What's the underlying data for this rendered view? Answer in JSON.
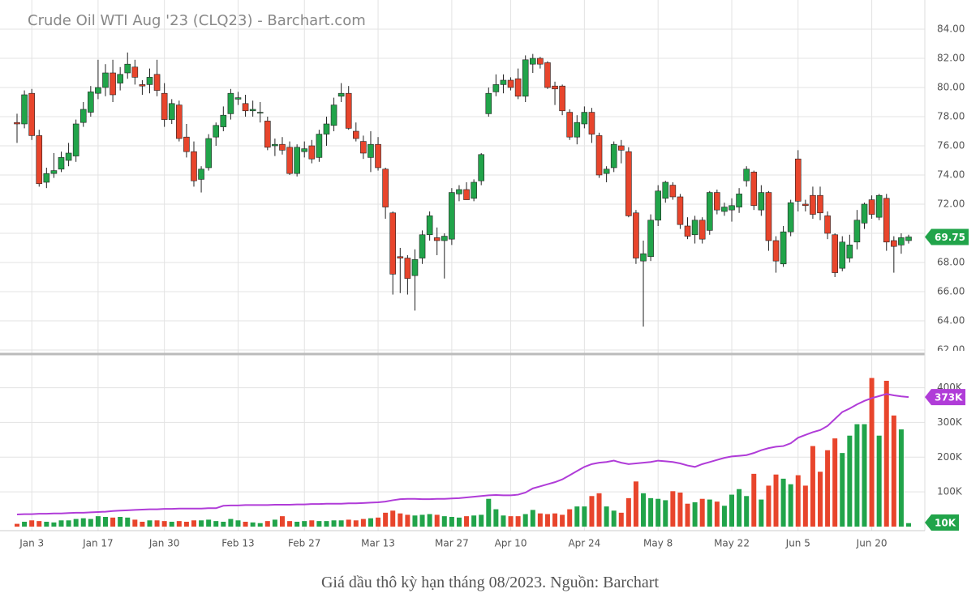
{
  "chart_data": {
    "type": "candlestick",
    "title": "Crude Oil WTI Aug '23 (CLQ23) - Barchart.com",
    "categories": [
      null,
      null,
      "Jan 3",
      null,
      null,
      null,
      null,
      null,
      null,
      null,
      null,
      "Jan 17",
      null,
      null,
      null,
      null,
      null,
      null,
      null,
      null,
      "Jan 30",
      null,
      null,
      null,
      null,
      null,
      null,
      null,
      null,
      null,
      "Feb 13",
      null,
      null,
      null,
      null,
      null,
      null,
      null,
      null,
      "Feb 27",
      null,
      null,
      null,
      null,
      null,
      null,
      null,
      null,
      null,
      "Mar 13",
      null,
      null,
      null,
      null,
      null,
      null,
      null,
      null,
      null,
      "Mar 27",
      null,
      null,
      null,
      null,
      null,
      null,
      null,
      "Apr 10",
      null,
      null,
      null,
      null,
      null,
      null,
      null,
      null,
      null,
      "Apr 24",
      null,
      null,
      null,
      null,
      null,
      null,
      null,
      null,
      null,
      "May 8",
      null,
      null,
      null,
      null,
      null,
      null,
      null,
      null,
      null,
      "May 22",
      null,
      null,
      null,
      null,
      null,
      null,
      null,
      null,
      "Jun 5",
      null,
      null,
      null,
      null,
      null,
      null,
      null,
      null,
      null,
      "Jun 20",
      null,
      null,
      null,
      null,
      null
    ],
    "ohlc": [
      [
        77.6,
        78.2,
        76.2,
        77.5
      ],
      [
        77.5,
        79.8,
        77.2,
        79.5
      ],
      [
        79.6,
        79.9,
        76.4,
        76.7
      ],
      [
        76.7,
        77.1,
        73.2,
        73.4
      ],
      [
        73.5,
        74.5,
        73.1,
        74.1
      ],
      [
        74.1,
        75.5,
        73.8,
        74.3
      ],
      [
        74.4,
        75.6,
        74.2,
        75.2
      ],
      [
        75.0,
        76.2,
        74.6,
        75.5
      ],
      [
        75.3,
        77.8,
        74.9,
        77.5
      ],
      [
        77.6,
        79.0,
        77.3,
        78.5
      ],
      [
        78.3,
        80.1,
        78.0,
        79.7
      ],
      [
        79.6,
        81.9,
        79.2,
        80.0
      ],
      [
        80.0,
        81.6,
        79.4,
        81.0
      ],
      [
        81.0,
        81.9,
        79.0,
        79.5
      ],
      [
        80.3,
        81.4,
        79.8,
        80.9
      ],
      [
        81.0,
        82.4,
        80.6,
        81.6
      ],
      [
        81.4,
        81.9,
        80.2,
        80.7
      ],
      [
        80.2,
        80.5,
        79.5,
        80.1
      ],
      [
        80.2,
        81.3,
        79.6,
        80.7
      ],
      [
        80.9,
        81.9,
        79.4,
        79.8
      ],
      [
        79.6,
        80.3,
        77.3,
        77.8
      ],
      [
        77.8,
        79.2,
        77.5,
        78.9
      ],
      [
        78.8,
        79.1,
        76.3,
        76.5
      ],
      [
        76.6,
        77.5,
        75.2,
        75.6
      ],
      [
        75.6,
        76.3,
        73.2,
        73.6
      ],
      [
        73.7,
        74.6,
        72.8,
        74.4
      ],
      [
        74.5,
        76.8,
        74.3,
        76.5
      ],
      [
        76.6,
        77.6,
        76.0,
        77.4
      ],
      [
        77.3,
        78.7,
        77.0,
        78.1
      ],
      [
        78.2,
        79.9,
        77.8,
        79.6
      ],
      [
        79.2,
        79.7,
        78.8,
        79.3
      ],
      [
        78.9,
        79.5,
        78.0,
        78.4
      ],
      [
        78.4,
        79.1,
        78.0,
        78.5
      ],
      [
        78.3,
        79.0,
        77.6,
        78.3
      ],
      [
        77.7,
        78.0,
        75.7,
        75.9
      ],
      [
        76.0,
        76.5,
        75.3,
        76.1
      ],
      [
        76.1,
        76.6,
        75.4,
        75.7
      ],
      [
        75.9,
        76.3,
        74.0,
        74.1
      ],
      [
        74.1,
        76.1,
        73.9,
        75.9
      ],
      [
        75.6,
        76.3,
        75.2,
        75.8
      ],
      [
        76.0,
        76.4,
        74.8,
        75.1
      ],
      [
        75.2,
        77.1,
        74.9,
        76.8
      ],
      [
        76.8,
        78.0,
        76.0,
        77.5
      ],
      [
        77.4,
        79.3,
        77.0,
        78.8
      ],
      [
        79.4,
        80.3,
        79.0,
        79.6
      ],
      [
        79.6,
        80.1,
        77.1,
        77.2
      ],
      [
        77.0,
        77.6,
        76.3,
        76.5
      ],
      [
        76.3,
        76.7,
        75.1,
        75.5
      ],
      [
        75.2,
        77.0,
        74.2,
        76.1
      ],
      [
        76.1,
        76.6,
        74.3,
        74.5
      ],
      [
        74.4,
        74.5,
        71.0,
        71.8
      ],
      [
        71.4,
        71.5,
        65.8,
        67.2
      ],
      [
        68.4,
        69.0,
        65.9,
        68.3
      ],
      [
        68.3,
        68.5,
        65.8,
        66.9
      ],
      [
        67.1,
        68.9,
        64.7,
        68.2
      ],
      [
        68.3,
        70.2,
        67.9,
        69.9
      ],
      [
        69.9,
        71.5,
        69.5,
        71.2
      ],
      [
        69.7,
        70.4,
        68.5,
        69.5
      ],
      [
        69.5,
        70.0,
        66.9,
        69.8
      ],
      [
        69.6,
        73.1,
        69.2,
        72.8
      ],
      [
        72.7,
        73.3,
        72.2,
        73.0
      ],
      [
        73.0,
        73.5,
        72.3,
        72.3
      ],
      [
        72.4,
        73.7,
        72.2,
        73.5
      ],
      [
        73.6,
        75.5,
        73.3,
        75.4
      ],
      [
        78.2,
        80.0,
        78.0,
        79.6
      ],
      [
        79.7,
        80.9,
        79.4,
        80.2
      ],
      [
        80.2,
        80.9,
        79.6,
        80.5
      ],
      [
        80.5,
        80.7,
        79.8,
        80.0
      ],
      [
        80.6,
        81.3,
        79.2,
        79.4
      ],
      [
        79.4,
        82.2,
        79.0,
        81.9
      ],
      [
        81.6,
        82.3,
        81.0,
        82.0
      ],
      [
        82.0,
        82.1,
        81.3,
        81.6
      ],
      [
        81.7,
        81.8,
        79.9,
        80.0
      ],
      [
        80.1,
        80.4,
        78.8,
        79.9
      ],
      [
        80.1,
        80.2,
        78.1,
        78.4
      ],
      [
        78.3,
        78.5,
        76.4,
        76.6
      ],
      [
        76.6,
        78.1,
        76.1,
        77.6
      ],
      [
        77.5,
        78.7,
        77.2,
        78.3
      ],
      [
        78.3,
        78.6,
        76.2,
        76.8
      ],
      [
        76.7,
        76.9,
        73.8,
        74.0
      ],
      [
        74.1,
        74.6,
        73.5,
        74.4
      ],
      [
        74.5,
        76.3,
        74.2,
        76.1
      ],
      [
        76.0,
        76.4,
        74.8,
        75.7
      ],
      [
        75.6,
        75.9,
        71.1,
        71.2
      ],
      [
        71.4,
        71.6,
        67.9,
        68.3
      ],
      [
        68.1,
        69.5,
        63.6,
        68.6
      ],
      [
        68.4,
        71.3,
        68.1,
        70.9
      ],
      [
        70.9,
        73.3,
        70.5,
        72.9
      ],
      [
        72.4,
        73.6,
        72.1,
        73.5
      ],
      [
        73.3,
        73.5,
        72.3,
        72.5
      ],
      [
        72.5,
        72.7,
        70.3,
        70.6
      ],
      [
        70.5,
        71.1,
        69.6,
        69.8
      ],
      [
        69.9,
        71.2,
        69.3,
        70.9
      ],
      [
        70.9,
        71.1,
        69.3,
        69.6
      ],
      [
        70.2,
        72.9,
        69.9,
        72.8
      ],
      [
        72.8,
        73.0,
        71.3,
        71.6
      ],
      [
        71.5,
        72.1,
        71.2,
        71.8
      ],
      [
        71.6,
        72.4,
        70.8,
        71.9
      ],
      [
        71.8,
        73.1,
        71.4,
        72.7
      ],
      [
        73.6,
        74.6,
        73.2,
        74.4
      ],
      [
        74.2,
        74.3,
        71.6,
        71.9
      ],
      [
        71.6,
        73.3,
        71.2,
        72.8
      ],
      [
        72.8,
        72.9,
        68.8,
        69.5
      ],
      [
        69.5,
        69.8,
        67.3,
        68.1
      ],
      [
        67.9,
        70.5,
        67.7,
        70.1
      ],
      [
        70.1,
        72.3,
        69.8,
        72.1
      ],
      [
        75.1,
        75.7,
        71.5,
        72.2
      ],
      [
        72.0,
        72.3,
        71.5,
        71.9
      ],
      [
        72.6,
        73.2,
        71.0,
        71.3
      ],
      [
        72.6,
        73.2,
        70.9,
        71.4
      ],
      [
        71.2,
        71.5,
        69.6,
        70.0
      ],
      [
        69.9,
        70.0,
        67.0,
        67.3
      ],
      [
        67.6,
        69.8,
        67.4,
        69.4
      ],
      [
        68.3,
        69.9,
        68.0,
        69.2
      ],
      [
        69.4,
        71.6,
        68.9,
        70.9
      ],
      [
        70.7,
        72.1,
        70.3,
        72.0
      ],
      [
        72.3,
        72.6,
        71.0,
        71.3
      ],
      [
        71.1,
        72.7,
        70.9,
        72.6
      ],
      [
        72.4,
        72.7,
        68.8,
        69.4
      ],
      [
        69.5,
        69.8,
        67.3,
        69.1
      ],
      [
        69.2,
        70.0,
        68.6,
        69.7
      ],
      [
        69.5,
        69.9,
        69.3,
        69.75
      ]
    ],
    "up_color": "#21a44a",
    "down_color": "#e8452c",
    "ylim": [
      61.72,
      86
    ],
    "yticks": [
      {
        "value": 62,
        "label": "62.00"
      },
      {
        "value": 64,
        "label": "64.00"
      },
      {
        "value": 66,
        "label": "66.00"
      },
      {
        "value": 68,
        "label": "68.00"
      },
      {
        "value": 70,
        "label": "70.00"
      },
      {
        "value": 72,
        "label": "72.00"
      },
      {
        "value": 74,
        "label": "74.00"
      },
      {
        "value": 76,
        "label": "76.00"
      },
      {
        "value": 78,
        "label": "78.00"
      },
      {
        "value": 80,
        "label": "80.00"
      },
      {
        "value": 82,
        "label": "82.00"
      },
      {
        "value": 84,
        "label": "84.00"
      }
    ],
    "grid": true,
    "volume": {
      "values": [
        8000,
        14000,
        18000,
        16000,
        14000,
        12000,
        18000,
        18000,
        22000,
        24000,
        22000,
        30000,
        28000,
        26000,
        28000,
        26000,
        20000,
        14000,
        18000,
        18000,
        16000,
        14000,
        16000,
        14000,
        18000,
        18000,
        20000,
        16000,
        14000,
        22000,
        18000,
        14000,
        12000,
        10000,
        16000,
        20000,
        30000,
        16000,
        14000,
        16000,
        18000,
        16000,
        16000,
        18000,
        18000,
        20000,
        18000,
        22000,
        24000,
        26000,
        40000,
        46000,
        38000,
        34000,
        32000,
        34000,
        36000,
        34000,
        30000,
        28000,
        26000,
        30000,
        32000,
        34000,
        80000,
        50000,
        32000,
        30000,
        30000,
        36000,
        48000,
        38000,
        36000,
        38000,
        34000,
        50000,
        58000,
        58000,
        88000,
        96000,
        58000,
        46000,
        40000,
        82000,
        130000,
        96000,
        82000,
        80000,
        76000,
        102000,
        98000,
        66000,
        70000,
        80000,
        78000,
        72000,
        60000,
        92000,
        108000,
        88000,
        152000,
        78000,
        118000,
        150000,
        138000,
        122000,
        148000,
        118000,
        232000,
        158000,
        220000,
        254000,
        212000,
        262000,
        295000,
        295000,
        428000,
        262000,
        420000,
        320000,
        280000,
        10000
      ],
      "ylim": [
        0,
        490000
      ],
      "yticks": [
        {
          "value": 100000,
          "label": "100K"
        },
        {
          "value": 200000,
          "label": "200K"
        },
        {
          "value": 300000,
          "label": "300K"
        },
        {
          "value": 400000,
          "label": "400K"
        }
      ],
      "last_tag": {
        "value": 10000,
        "label": "10K"
      }
    },
    "moving_average": {
      "color": "#b03cd8",
      "values": [
        35000,
        36000,
        36000,
        37000,
        37000,
        38000,
        38000,
        39000,
        40000,
        40000,
        41000,
        42000,
        43000,
        45000,
        46000,
        47000,
        48000,
        49000,
        50000,
        50000,
        51000,
        51000,
        52000,
        52000,
        52000,
        52000,
        53000,
        53000,
        60000,
        61000,
        61000,
        62000,
        62000,
        62000,
        62000,
        63000,
        63000,
        63000,
        64000,
        64000,
        65000,
        65000,
        66000,
        66000,
        66000,
        67000,
        67000,
        68000,
        69000,
        70000,
        72000,
        76000,
        79000,
        80000,
        80000,
        79000,
        79000,
        80000,
        80000,
        81000,
        82000,
        84000,
        86000,
        88000,
        90000,
        91000,
        90000,
        90000,
        92000,
        98000,
        110000,
        116000,
        122000,
        128000,
        136000,
        148000,
        160000,
        172000,
        180000,
        184000,
        186000,
        190000,
        184000,
        180000,
        182000,
        184000,
        186000,
        190000,
        188000,
        186000,
        182000,
        176000,
        172000,
        180000,
        186000,
        192000,
        198000,
        202000,
        204000,
        206000,
        212000,
        220000,
        226000,
        230000,
        232000,
        240000,
        256000,
        264000,
        272000,
        278000,
        290000,
        310000,
        330000,
        340000,
        352000,
        362000,
        370000,
        376000,
        382000,
        378000,
        375000,
        373000
      ],
      "last_tag": {
        "value": 373000,
        "label": "373K"
      }
    }
  },
  "caption": "Giá dầu thô kỳ hạn tháng 08/2023. Nguồn: Barchart"
}
